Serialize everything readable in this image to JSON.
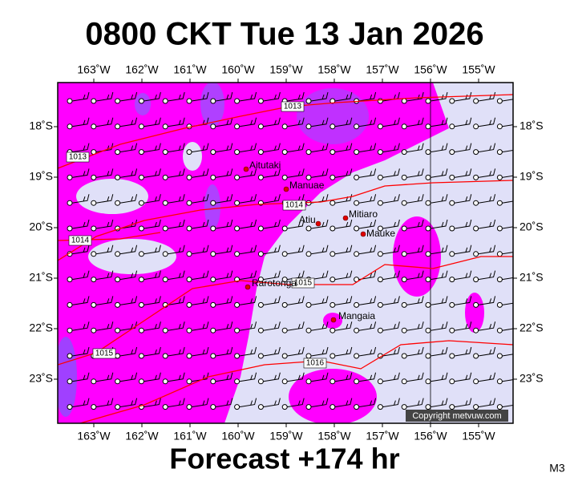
{
  "header": {
    "title": "0800 CKT Tue 13 Jan 2026"
  },
  "footer": {
    "forecast": "Forecast +174 hr",
    "badge": "M3"
  },
  "map": {
    "lon_ticks": [
      "163˚W",
      "162˚W",
      "161˚W",
      "160˚W",
      "159˚W",
      "158˚W",
      "157˚W",
      "156˚W",
      "155˚W"
    ],
    "lat_ticks": [
      "18˚S",
      "19˚S",
      "20˚S",
      "21˚S",
      "22˚S",
      "23˚S"
    ],
    "places": [
      "Aitutaki",
      "Manuae",
      "Mitiaro",
      "Atiu",
      "Mauke",
      "Rarotonga",
      "Mangaia"
    ],
    "isobar_labels": [
      "1013",
      "1013",
      "1014",
      "1014",
      "1015",
      "1015",
      "1016"
    ],
    "copyright": "Copyright metvuw.com"
  }
}
